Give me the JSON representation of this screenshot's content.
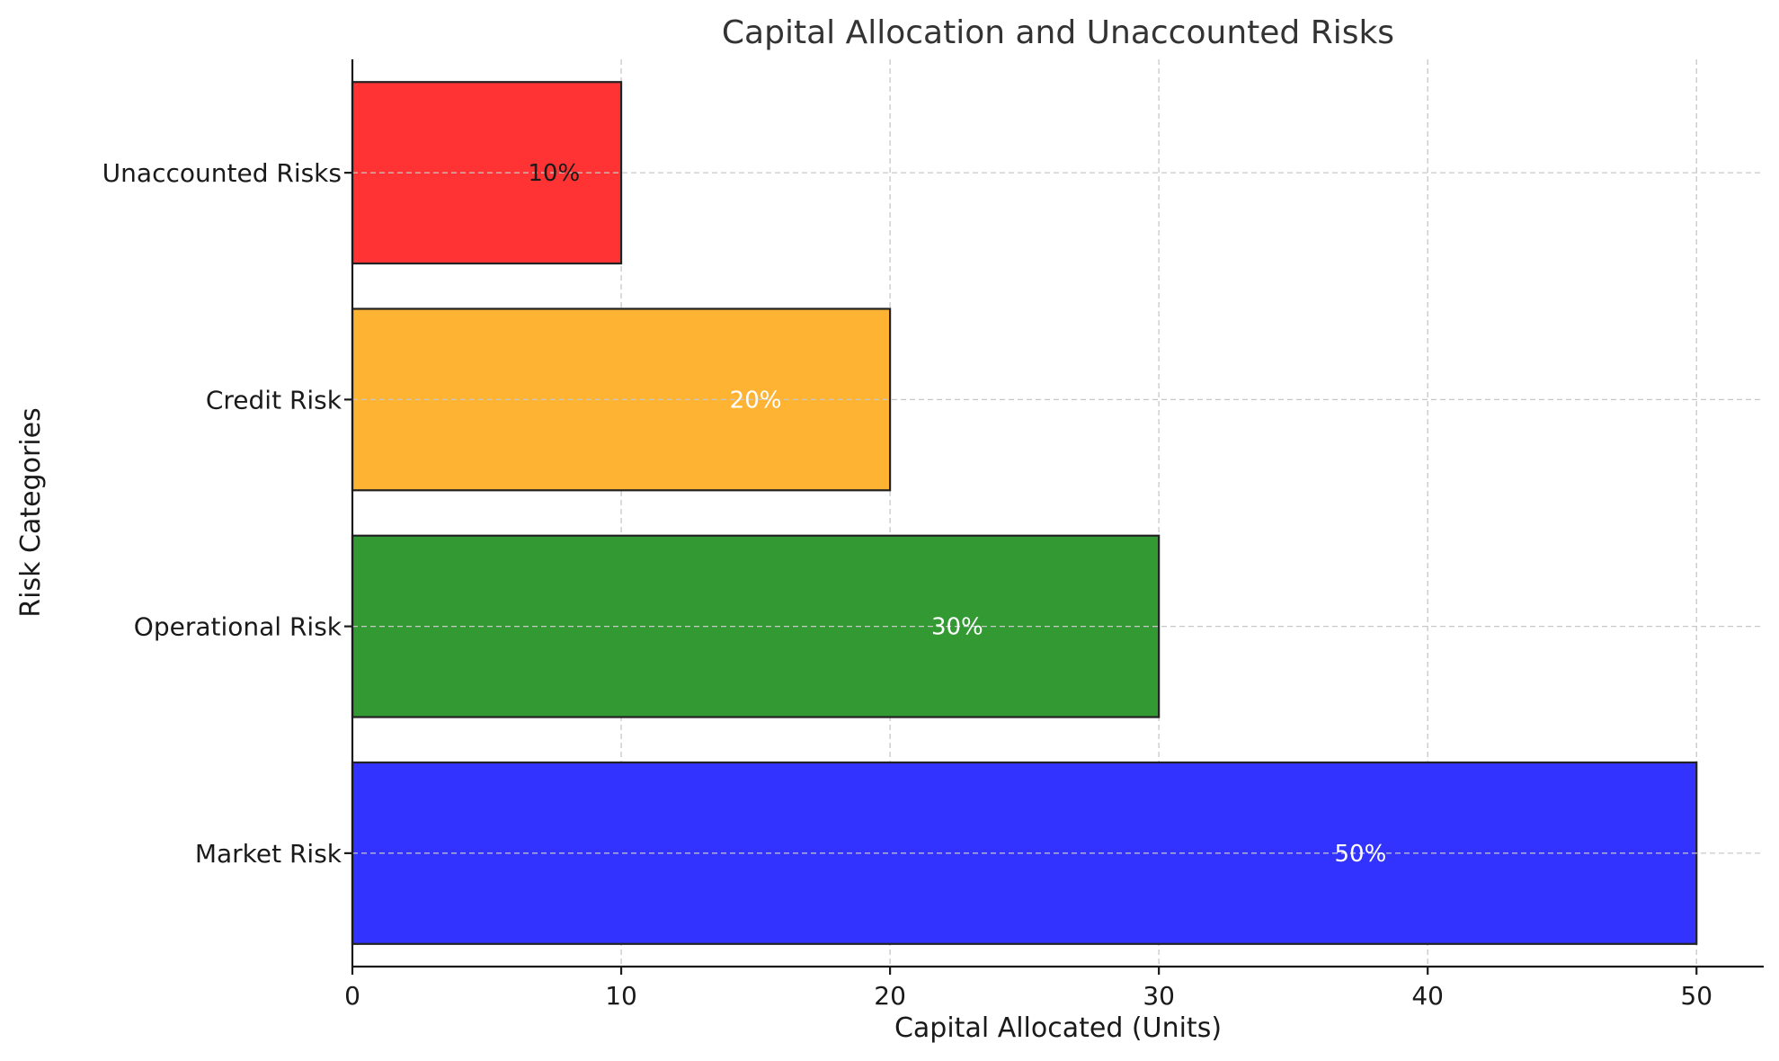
{
  "chart_data": {
    "type": "bar",
    "orientation": "horizontal",
    "title": "Capital Allocation and Unaccounted Risks",
    "xlabel": "Capital Allocated (Units)",
    "ylabel": "Risk Categories",
    "categories": [
      "Market Risk",
      "Operational Risk",
      "Credit Risk",
      "Unaccounted Risks"
    ],
    "values": [
      50,
      30,
      20,
      10
    ],
    "data_labels": [
      "50%",
      "30%",
      "20%",
      "10%"
    ],
    "colors": [
      "#3333ff",
      "#339933",
      "#ffb333",
      "#ff3333"
    ],
    "data_label_colors": [
      "#ffffff",
      "#ffffff",
      "#ffffff",
      "#1a1a1a"
    ],
    "xlim": [
      0,
      52.5
    ],
    "xticks": [
      0,
      10,
      20,
      30,
      40,
      50
    ],
    "grid": true
  }
}
